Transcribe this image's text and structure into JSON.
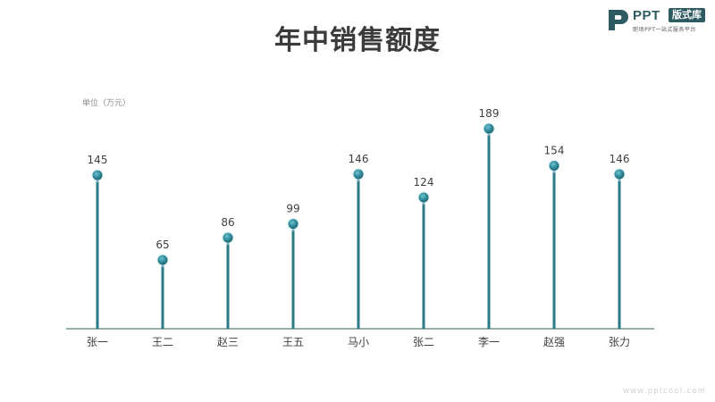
{
  "page": {
    "title": "年中销售额度",
    "unit_label": "单位（万元）",
    "watermark": "www.pptcool.com"
  },
  "logo": {
    "brand": "PPT",
    "badge": "版式库",
    "slogan": "职场PPT一站式服务平台"
  },
  "colors": {
    "stem": "#2a7a87",
    "dot": "#2f8a9a",
    "axis": "#2e5b62"
  },
  "chart_data": {
    "type": "lollipop",
    "title": "年中销售额度",
    "ylabel": "单位（万元）",
    "categories": [
      "张一",
      "王二",
      "赵三",
      "王五",
      "马小",
      "张二",
      "李一",
      "赵强",
      "张力"
    ],
    "values": [
      145,
      65,
      86,
      99,
      146,
      124,
      189,
      154,
      146
    ],
    "ylim": [
      0,
      189
    ],
    "grid": false,
    "legend": "none"
  }
}
